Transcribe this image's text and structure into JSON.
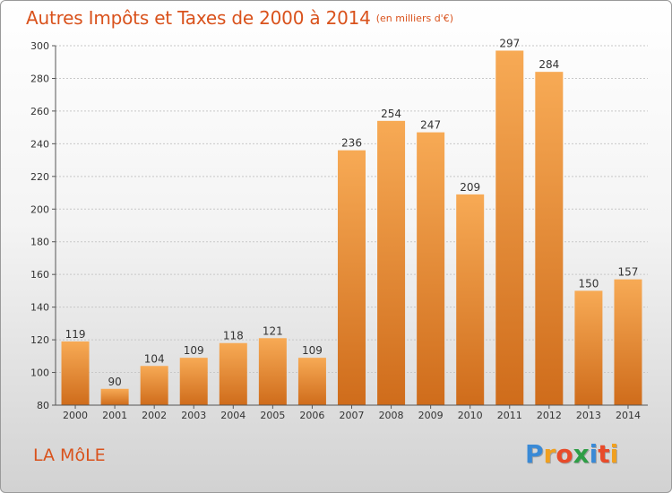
{
  "title": "Autres Impôts et Taxes de 2000 à 2014",
  "unit_label": "(en milliers d'€)",
  "commune": "LA MôLE",
  "logo": {
    "letters": [
      "P",
      "r",
      "o",
      "x",
      "i",
      "t",
      "i"
    ],
    "colors": [
      "#3a8ad6",
      "#f0a020",
      "#e84b2a",
      "#2e9e46",
      "#3a8ad6",
      "#e84b2a",
      "#f0a020"
    ]
  },
  "colors": {
    "bar_light": "#f7aa55",
    "bar_dark": "#cf6c1b",
    "title": "#d9521c"
  },
  "chart_data": {
    "type": "bar",
    "title": "Autres Impôts et Taxes de 2000 à 2014",
    "subtitle": "(en milliers d'€)",
    "categories": [
      "2000",
      "2001",
      "2002",
      "2003",
      "2004",
      "2005",
      "2006",
      "2007",
      "2008",
      "2009",
      "2010",
      "2011",
      "2012",
      "2013",
      "2014"
    ],
    "values": [
      119,
      90,
      104,
      109,
      118,
      121,
      109,
      236,
      254,
      247,
      209,
      297,
      284,
      150,
      157
    ],
    "ylim": [
      80,
      300
    ],
    "yticks": [
      80,
      100,
      120,
      140,
      160,
      180,
      200,
      220,
      240,
      260,
      280,
      300
    ],
    "grid": true
  }
}
